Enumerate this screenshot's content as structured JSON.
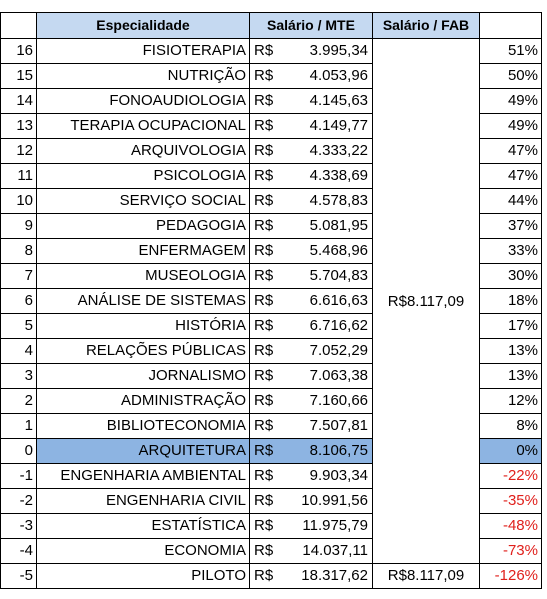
{
  "table": {
    "header": [
      "Especialidade",
      "Salário / MTE",
      "Salário / FAB"
    ],
    "fab_merged": "R$8.117,09",
    "rows": [
      [
        "16",
        "FISIOTERAPIA",
        "R$",
        "3.995,34",
        "51%"
      ],
      [
        "15",
        "NUTRIÇÃO",
        "R$",
        "4.053,96",
        "50%"
      ],
      [
        "14",
        "FONOAUDIOLOGIA",
        "R$",
        "4.145,63",
        "49%"
      ],
      [
        "13",
        "TERAPIA OCUPACIONAL",
        "R$",
        "4.149,77",
        "49%"
      ],
      [
        "12",
        "ARQUIVOLOGIA",
        "R$",
        "4.333,22",
        "47%"
      ],
      [
        "11",
        "PSICOLOGIA",
        "R$",
        "4.338,69",
        "47%"
      ],
      [
        "10",
        "SERVIÇO SOCIAL",
        "R$",
        "4.578,83",
        "44%"
      ],
      [
        "9",
        "PEDAGOGIA",
        "R$",
        "5.081,95",
        "37%"
      ],
      [
        "8",
        "ENFERMAGEM",
        "R$",
        "5.468,96",
        "33%"
      ],
      [
        "7",
        "MUSEOLOGIA",
        "R$",
        "5.704,83",
        "30%"
      ],
      [
        "6",
        "ANÁLISE DE SISTEMAS",
        "R$",
        "6.616,63",
        "18%"
      ],
      [
        "5",
        "HISTÓRIA",
        "R$",
        "6.716,62",
        "17%"
      ],
      [
        "4",
        "RELAÇÕES PÚBLICAS",
        "R$",
        "7.052,29",
        "13%"
      ],
      [
        "3",
        "JORNALISMO",
        "R$",
        "7.063,38",
        "13%"
      ],
      [
        "2",
        "ADMINISTRAÇÃO",
        "R$",
        "7.160,66",
        "12%"
      ],
      [
        "1",
        "BIBLIOTECONOMIA",
        "R$",
        "7.507,81",
        "8%"
      ],
      [
        "0",
        "ARQUITETURA",
        "R$",
        "8.106,75",
        "0%"
      ],
      [
        "-1",
        "ENGENHARIA AMBIENTAL",
        "R$",
        "9.903,34",
        "-22%"
      ],
      [
        "-2",
        "ENGENHARIA CIVIL",
        "R$",
        "10.991,56",
        "-35%"
      ],
      [
        "-3",
        "ESTATÍSTICA",
        "R$",
        "11.975,79",
        "-48%"
      ],
      [
        "-4",
        "ECONOMIA",
        "R$",
        "14.037,11",
        "-73%"
      ],
      [
        "-5",
        "PILOTO",
        "R$",
        "18.317,62",
        "-126%"
      ]
    ],
    "last_fab": "R$8.117,09"
  }
}
